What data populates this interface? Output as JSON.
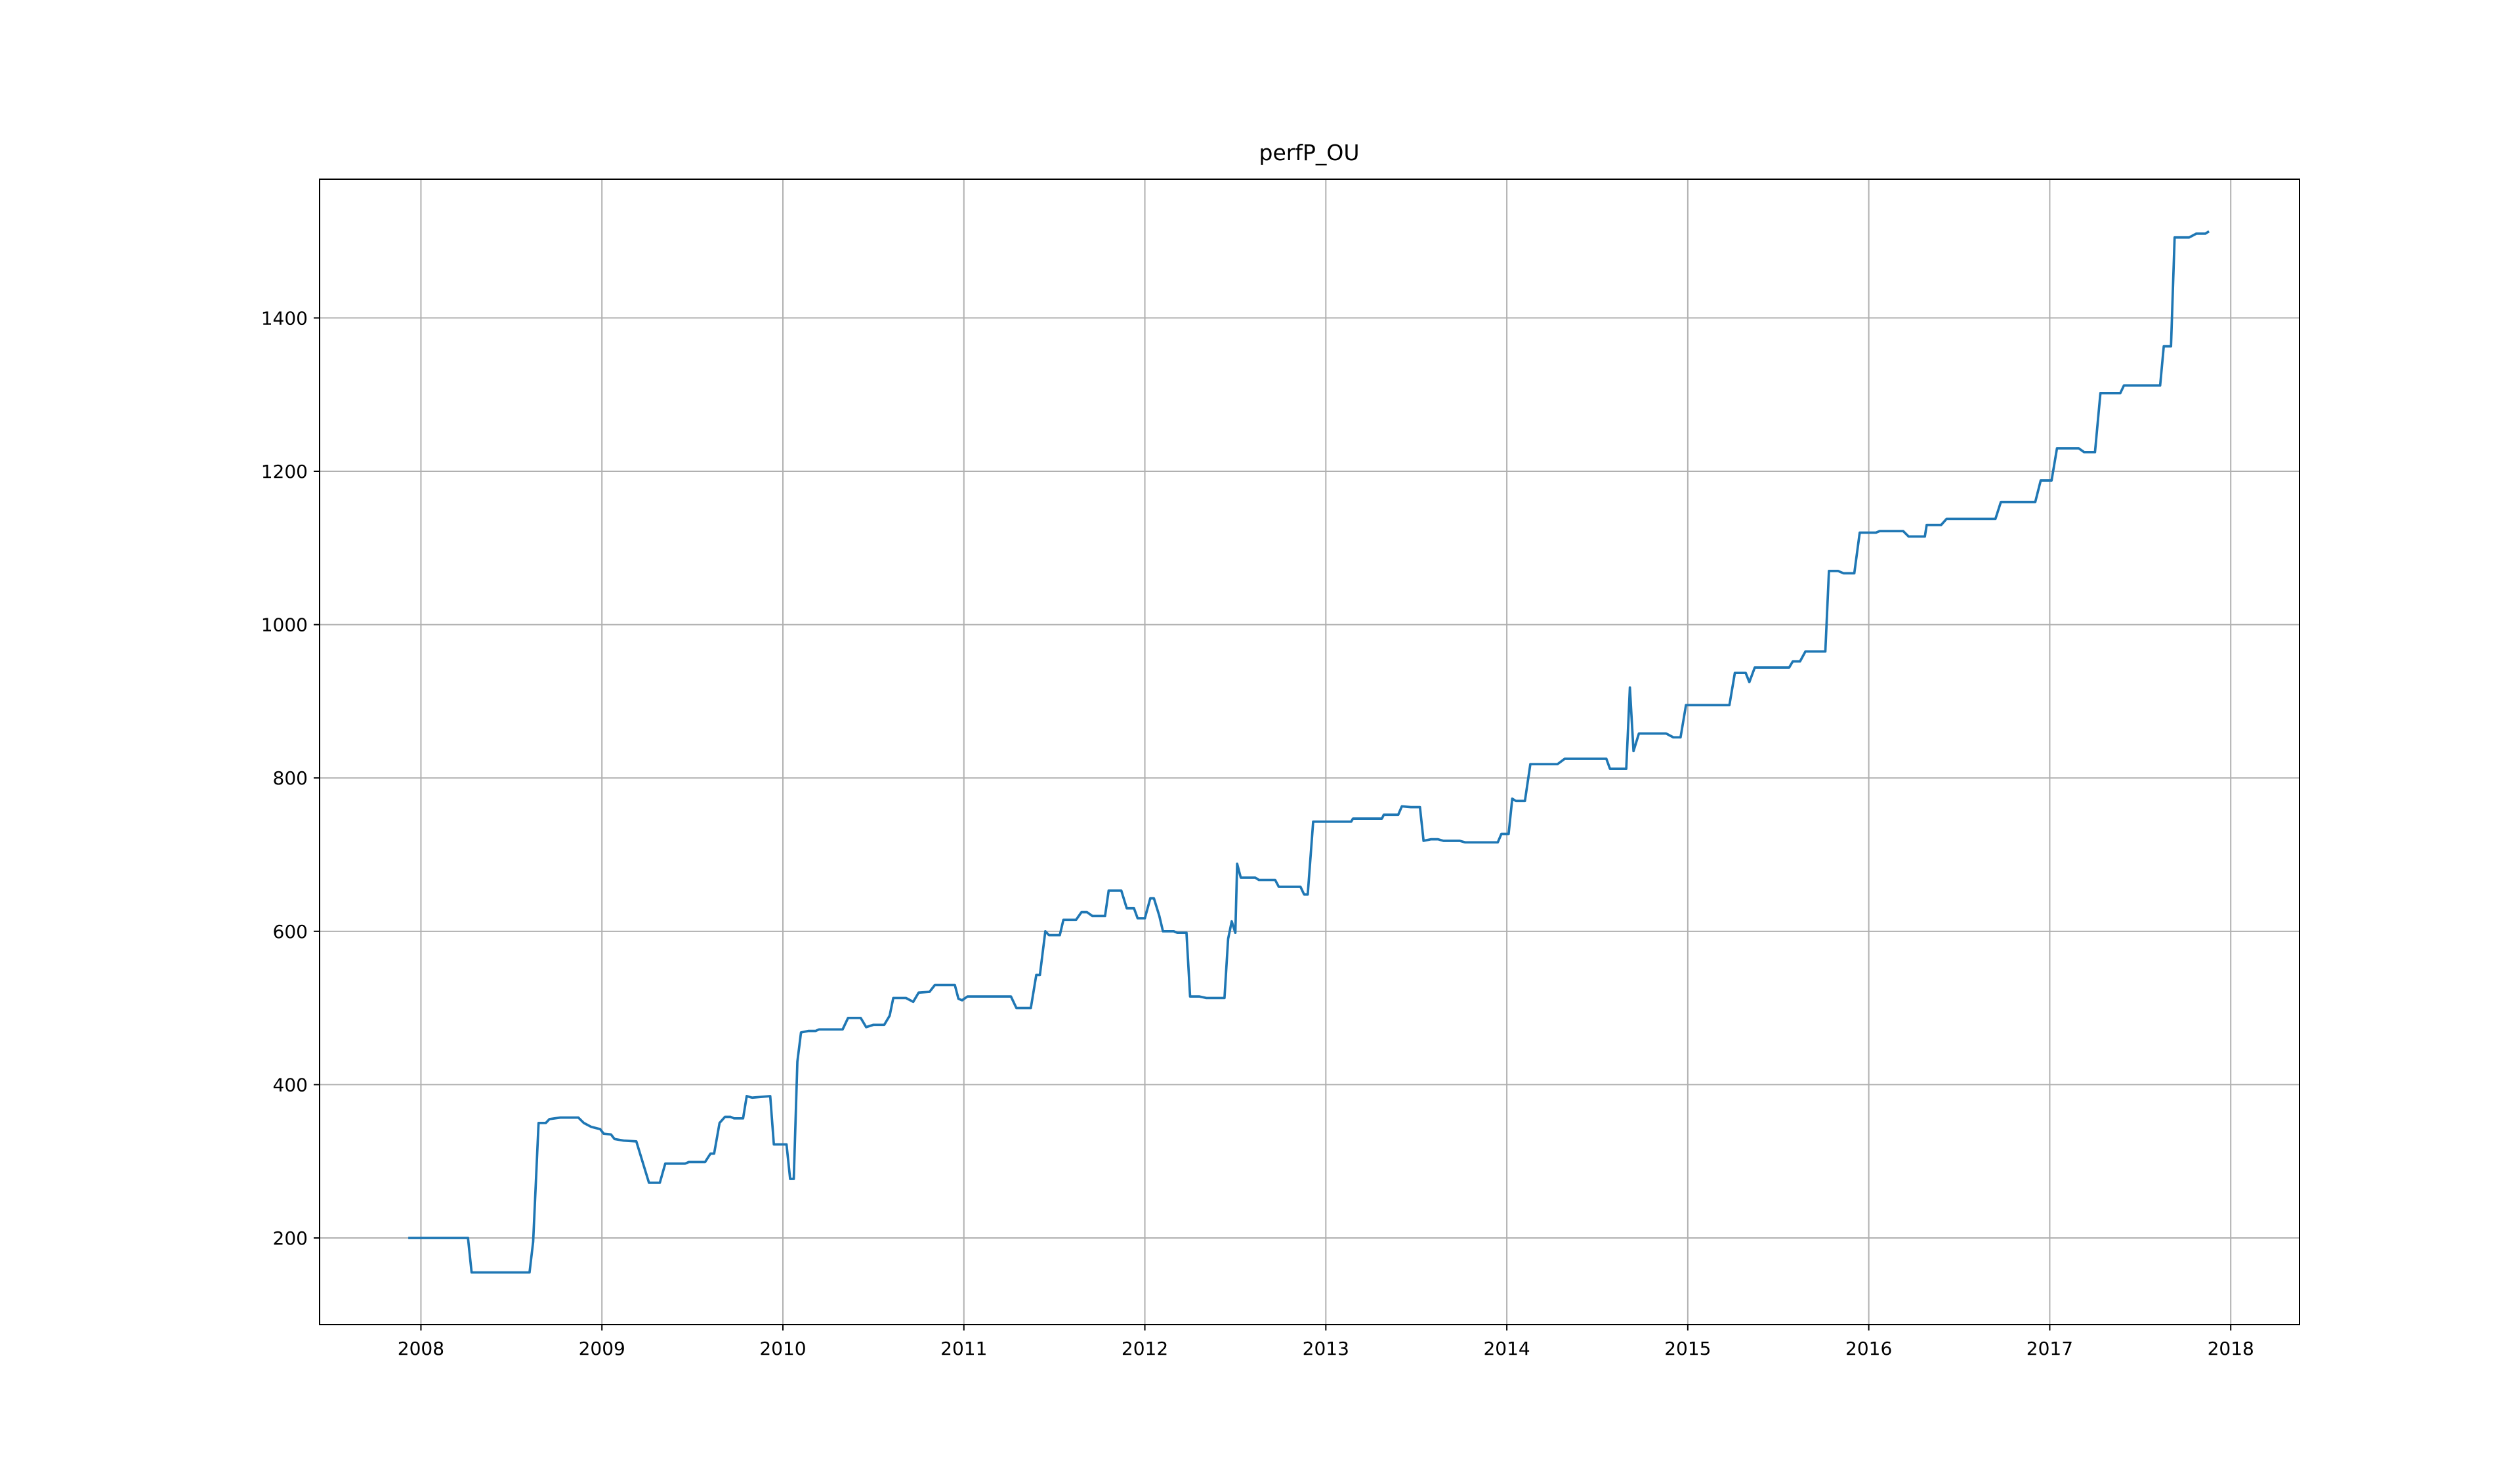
{
  "chart_data": {
    "type": "line",
    "title": "perfP_OU",
    "color": "#1f77b4",
    "grid": true,
    "xlim": [
      2007.44,
      2018.38
    ],
    "ylim": [
      87,
      1581
    ],
    "xticks": [
      2008,
      2009,
      2010,
      2011,
      2012,
      2013,
      2014,
      2015,
      2016,
      2017,
      2018
    ],
    "yticks": [
      200,
      400,
      600,
      800,
      1000,
      1200,
      1400
    ],
    "x": [
      2007.93,
      2008.26,
      2008.28,
      2008.6,
      2008.62,
      2008.65,
      2008.69,
      2008.71,
      2008.77,
      2008.87,
      2008.9,
      2008.94,
      2008.99,
      2009.01,
      2009.05,
      2009.07,
      2009.12,
      2009.19,
      2009.26,
      2009.32,
      2009.35,
      2009.46,
      2009.48,
      2009.57,
      2009.6,
      2009.62,
      2009.65,
      2009.68,
      2009.71,
      2009.73,
      2009.78,
      2009.8,
      2009.83,
      2009.93,
      2009.95,
      2010.02,
      2010.04,
      2010.06,
      2010.08,
      2010.1,
      2010.14,
      2010.18,
      2010.2,
      2010.33,
      2010.36,
      2010.43,
      2010.46,
      2010.5,
      2010.56,
      2010.59,
      2010.61,
      2010.68,
      2010.72,
      2010.75,
      2010.81,
      2010.84,
      2010.95,
      2010.97,
      2010.99,
      2011.02,
      2011.26,
      2011.29,
      2011.37,
      2011.4,
      2011.42,
      2011.45,
      2011.47,
      2011.53,
      2011.55,
      2011.62,
      2011.65,
      2011.68,
      2011.71,
      2011.78,
      2011.8,
      2011.87,
      2011.9,
      2011.94,
      2011.96,
      2012.0,
      2012.03,
      2012.05,
      2012.08,
      2012.1,
      2012.16,
      2012.18,
      2012.23,
      2012.25,
      2012.3,
      2012.34,
      2012.44,
      2012.46,
      2012.48,
      2012.5,
      2012.51,
      2012.53,
      2012.61,
      2012.63,
      2012.72,
      2012.74,
      2012.86,
      2012.88,
      2012.9,
      2012.93,
      2013.14,
      2013.15,
      2013.31,
      2013.32,
      2013.4,
      2013.42,
      2013.47,
      2013.52,
      2013.54,
      2013.58,
      2013.62,
      2013.65,
      2013.74,
      2013.77,
      2013.95,
      2013.97,
      2014.01,
      2014.03,
      2014.05,
      2014.1,
      2014.13,
      2014.28,
      2014.32,
      2014.55,
      2014.57,
      2014.66,
      2014.68,
      2014.7,
      2014.73,
      2014.88,
      2014.92,
      2014.96,
      2014.99,
      2015.23,
      2015.26,
      2015.32,
      2015.34,
      2015.37,
      2015.56,
      2015.58,
      2015.62,
      2015.65,
      2015.76,
      2015.78,
      2015.83,
      2015.86,
      2015.92,
      2015.95,
      2016.04,
      2016.06,
      2016.19,
      2016.22,
      2016.31,
      2016.32,
      2016.4,
      2016.43,
      2016.7,
      2016.73,
      2016.92,
      2016.95,
      2017.01,
      2017.04,
      2017.16,
      2017.19,
      2017.25,
      2017.28,
      2017.39,
      2017.41,
      2017.61,
      2017.63,
      2017.67,
      2017.69,
      2017.77,
      2017.81,
      2017.86,
      2017.88
    ],
    "values": [
      200,
      200,
      155,
      155,
      195,
      350,
      350,
      355,
      357,
      357,
      350,
      345,
      342,
      336,
      335,
      329,
      327,
      326,
      272,
      272,
      297,
      297,
      299,
      299,
      310,
      310,
      350,
      358,
      358,
      356,
      356,
      385,
      383,
      385,
      322,
      322,
      277,
      277,
      430,
      468,
      470,
      470,
      472,
      472,
      487,
      487,
      475,
      478,
      478,
      490,
      513,
      513,
      508,
      520,
      521,
      530,
      530,
      512,
      510,
      515,
      515,
      500,
      500,
      543,
      543,
      600,
      595,
      595,
      615,
      615,
      625,
      625,
      620,
      620,
      653,
      653,
      630,
      630,
      617,
      617,
      643,
      643,
      620,
      600,
      600,
      598,
      598,
      515,
      515,
      513,
      513,
      590,
      613,
      598,
      688,
      670,
      670,
      667,
      667,
      658,
      658,
      648,
      648,
      743,
      743,
      747,
      747,
      752,
      752,
      763,
      762,
      762,
      718,
      720,
      720,
      718,
      718,
      716,
      716,
      727,
      727,
      773,
      770,
      770,
      818,
      818,
      825,
      825,
      812,
      812,
      918,
      835,
      858,
      858,
      853,
      853,
      895,
      895,
      937,
      937,
      925,
      944,
      944,
      952,
      952,
      965,
      965,
      1070,
      1070,
      1067,
      1067,
      1120,
      1120,
      1122,
      1122,
      1115,
      1115,
      1130,
      1130,
      1138,
      1138,
      1160,
      1160,
      1188,
      1188,
      1230,
      1230,
      1225,
      1225,
      1302,
      1302,
      1312,
      1312,
      1363,
      1363,
      1505,
      1505,
      1510,
      1510,
      1513
    ]
  }
}
